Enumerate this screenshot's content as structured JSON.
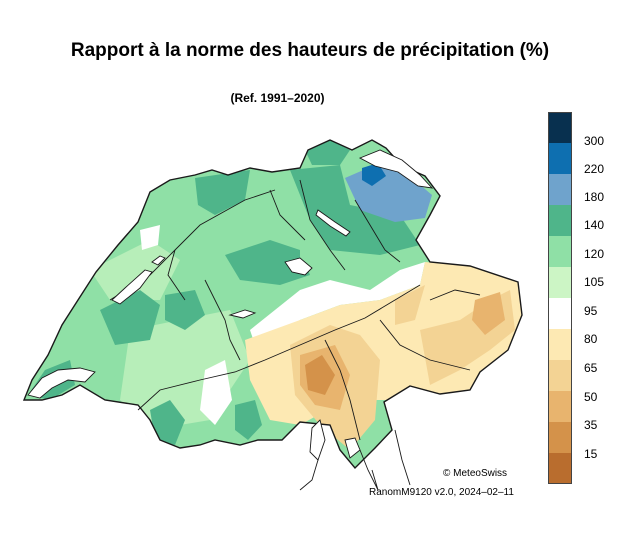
{
  "title": "Rapport à la norme des hauteurs de précipitation (%)",
  "subtitle": "(Ref. 1991–2020)",
  "legend": {
    "labels": [
      "300",
      "220",
      "180",
      "140",
      "120",
      "105",
      "95",
      "80",
      "65",
      "50",
      "35",
      "15"
    ],
    "colors": [
      "#08304f",
      "#0e6fb0",
      "#6fa3cc",
      "#4fb58a",
      "#8fe0a6",
      "#ccf5c5",
      "#ffffff",
      "#fde9b3",
      "#f3d394",
      "#e8b46e",
      "#d4924a",
      "#b96d2e"
    ]
  },
  "map_colors": {
    "green_light": "#b7eeb9",
    "green_mid": "#8fe0a6",
    "green_dark": "#4fb58a",
    "blue_light": "#6fa3cc",
    "blue_dark": "#0e6fb0",
    "yellow_light": "#fde9b3",
    "orange_light": "#f3d394",
    "orange_mid": "#e8b46e",
    "orange_dark": "#d4924a",
    "white": "#ffffff",
    "border": "#1a1a1a"
  },
  "credit": "© MeteoSwiss",
  "version": "RanomM9120 v2.0, 2024–02–11"
}
